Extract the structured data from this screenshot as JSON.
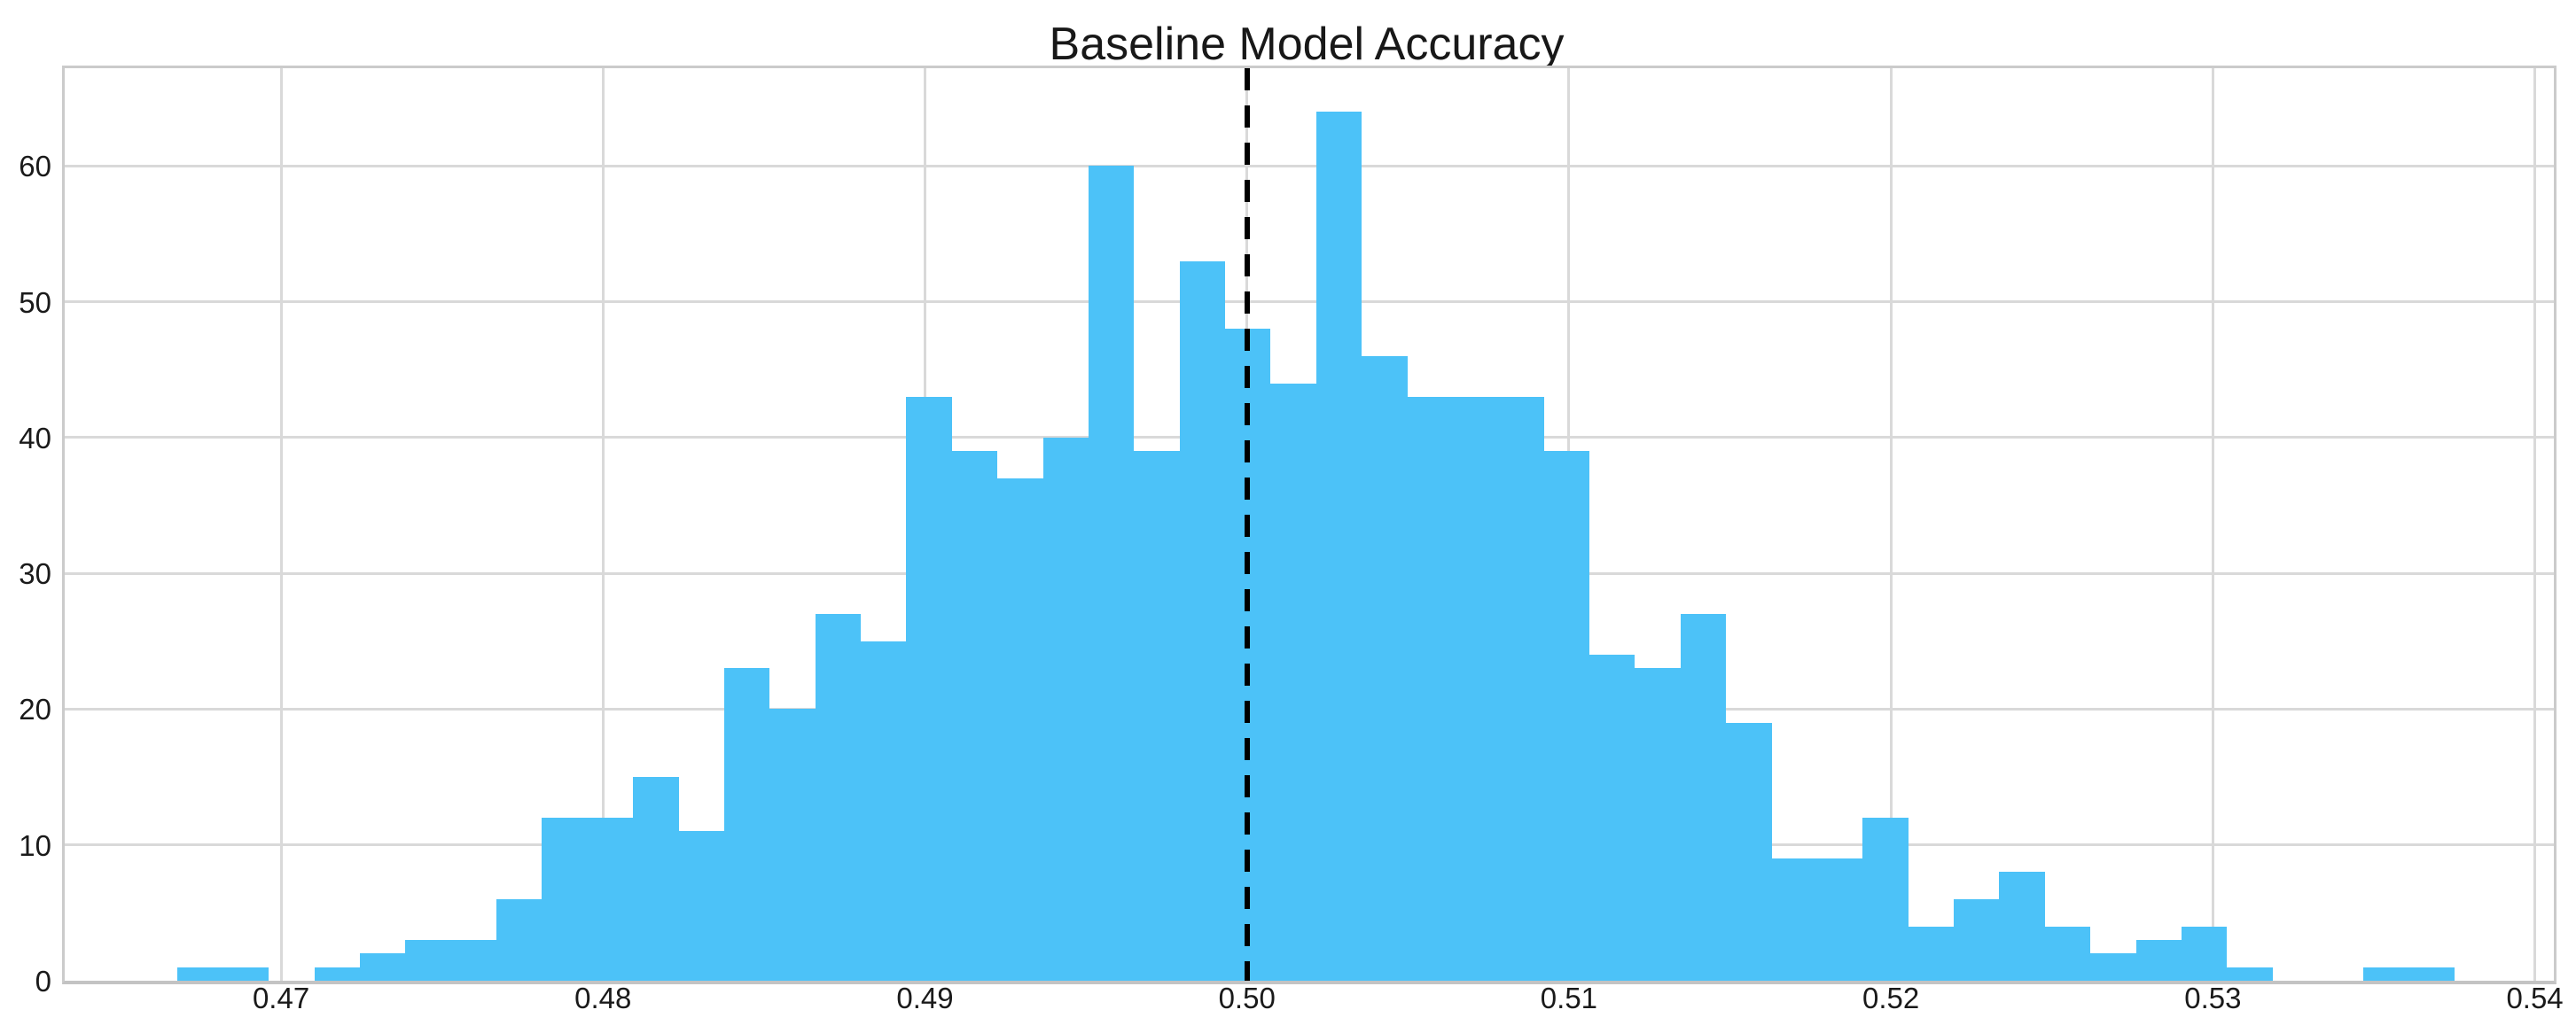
{
  "page": {
    "background_color": "#ffffff"
  },
  "chart_data": {
    "type": "bar",
    "subtype": "histogram",
    "title": "Baseline Model Accuracy",
    "xlabel": "",
    "ylabel": "",
    "bin_start": 0.46679,
    "bin_width": 0.0014144,
    "counts": [
      1,
      1,
      0,
      1,
      2,
      3,
      3,
      6,
      12,
      12,
      15,
      11,
      23,
      20,
      27,
      25,
      43,
      39,
      37,
      40,
      60,
      39,
      53,
      48,
      44,
      64,
      46,
      43,
      43,
      43,
      39,
      24,
      23,
      27,
      19,
      9,
      9,
      12,
      4,
      6,
      8,
      4,
      2,
      3,
      4,
      1,
      0,
      0,
      1,
      1
    ],
    "x_ticks": [
      {
        "value": 0.47,
        "label": "0.47"
      },
      {
        "value": 0.48,
        "label": "0.48"
      },
      {
        "value": 0.49,
        "label": "0.49"
      },
      {
        "value": 0.5,
        "label": "0.50"
      },
      {
        "value": 0.51,
        "label": "0.51"
      },
      {
        "value": 0.52,
        "label": "0.52"
      },
      {
        "value": 0.53,
        "label": "0.53"
      },
      {
        "value": 0.54,
        "label": "0.54"
      }
    ],
    "y_ticks": [
      {
        "value": 0,
        "label": "0"
      },
      {
        "value": 10,
        "label": "10"
      },
      {
        "value": 20,
        "label": "20"
      },
      {
        "value": 30,
        "label": "30"
      },
      {
        "value": 40,
        "label": "40"
      },
      {
        "value": 50,
        "label": "50"
      },
      {
        "value": 60,
        "label": "60"
      }
    ],
    "xlim": [
      0.46328,
      0.54059
    ],
    "ylim": [
      0,
      67.2
    ],
    "grid": true,
    "legend": null,
    "vline": {
      "x": 0.5,
      "color": "#000000",
      "style": "dashed"
    },
    "bar_color": "#4cc2f8",
    "grid_color": "#d9d9d9",
    "spine_color": "#c7c7c7",
    "text_color": "#1a1a1a"
  }
}
